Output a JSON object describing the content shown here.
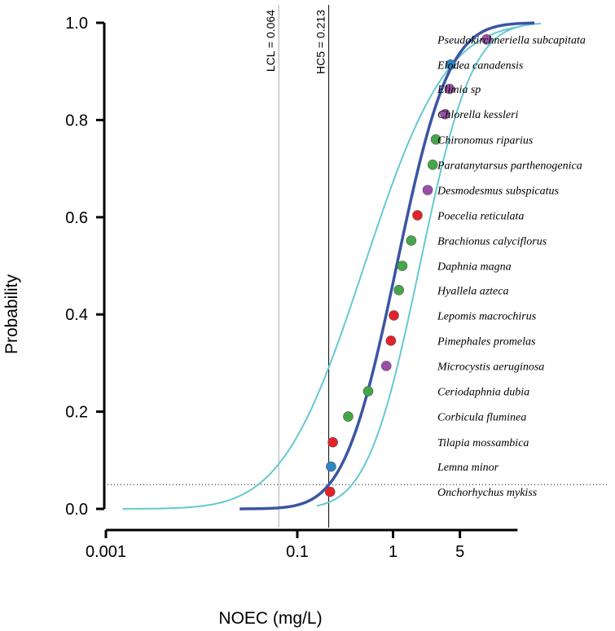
{
  "chart_data": {
    "type": "scatter",
    "xlabel": "NOEC (mg/L)",
    "ylabel": "Probability",
    "x_scale": "log",
    "xlim": [
      0.001,
      20
    ],
    "ylim": [
      0,
      1
    ],
    "x_ticks": [
      {
        "value": 0.001,
        "label": "0.001"
      },
      {
        "value": 0.1,
        "label": "0.1"
      },
      {
        "value": 1,
        "label": "1"
      },
      {
        "value": 5,
        "label": "5"
      }
    ],
    "y_ticks": [
      {
        "value": 0.0,
        "label": "0.0"
      },
      {
        "value": 0.2,
        "label": "0.2"
      },
      {
        "value": 0.4,
        "label": "0.4"
      },
      {
        "value": 0.6,
        "label": "0.6"
      },
      {
        "value": 0.8,
        "label": "0.8"
      },
      {
        "value": 1.0,
        "label": "1.0"
      }
    ],
    "grid": false,
    "reference_lines": [
      {
        "label": "LCL = 0.064",
        "x": 0.064,
        "color": "#aaaaaa"
      },
      {
        "label": "HC5 = 0.213",
        "x": 0.213,
        "color": "#000000"
      }
    ],
    "hline": {
      "y": 0.05,
      "style": "dotted"
    },
    "fit_curve": {
      "color": "#3a55a4",
      "median": 1.09,
      "sigma": 0.99,
      "x_range": [
        0.025,
        30
      ]
    },
    "confidence_band": {
      "color": "#66c8d2",
      "lower": {
        "median": 1.9,
        "sigma": 0.99,
        "x_range": [
          0.16,
          35
        ]
      },
      "upper": {
        "median": 0.5,
        "sigma": 1.55,
        "x_range": [
          0.0015,
          20
        ]
      }
    },
    "group_colors": {
      "fish": "#e3222a",
      "plant": "#2b86c5",
      "invertebrate": "#45a648",
      "algae": "#9b4fa7"
    },
    "points": [
      {
        "species": "Onchorhychus mykiss",
        "x": 0.22,
        "y": 0.035,
        "group": "fish"
      },
      {
        "species": "Lemna minor",
        "x": 0.225,
        "y": 0.087,
        "group": "plant"
      },
      {
        "species": "Tilapia mossambica",
        "x": 0.235,
        "y": 0.137,
        "group": "fish"
      },
      {
        "species": "Corbicula fluminea",
        "x": 0.34,
        "y": 0.19,
        "group": "invertebrate"
      },
      {
        "species": "Ceriodaphnia dubia",
        "x": 0.55,
        "y": 0.242,
        "group": "invertebrate"
      },
      {
        "species": "Microcystis aeruginosa",
        "x": 0.85,
        "y": 0.294,
        "group": "algae"
      },
      {
        "species": "Pimephales promelas",
        "x": 0.95,
        "y": 0.346,
        "group": "fish"
      },
      {
        "species": "Lepomis macrochirus",
        "x": 1.02,
        "y": 0.398,
        "group": "fish"
      },
      {
        "species": "Hyallela azteca",
        "x": 1.15,
        "y": 0.45,
        "group": "invertebrate"
      },
      {
        "species": "Daphnia magna",
        "x": 1.25,
        "y": 0.5,
        "group": "invertebrate"
      },
      {
        "species": "Brachionus calyciflorus",
        "x": 1.55,
        "y": 0.552,
        "group": "invertebrate"
      },
      {
        "species": "Poecelia reticulata",
        "x": 1.8,
        "y": 0.604,
        "group": "fish"
      },
      {
        "species": "Desmodesmus subspicatus",
        "x": 2.3,
        "y": 0.656,
        "group": "algae"
      },
      {
        "species": "Paratanytarsus parthenogenica",
        "x": 2.6,
        "y": 0.708,
        "group": "invertebrate"
      },
      {
        "species": "Chironomus riparius",
        "x": 2.8,
        "y": 0.76,
        "group": "invertebrate"
      },
      {
        "species": "Chlorella kessleri",
        "x": 3.5,
        "y": 0.812,
        "group": "algae"
      },
      {
        "species": "Elimia sp",
        "x": 3.9,
        "y": 0.864,
        "group": "algae"
      },
      {
        "species": "Elodea canadensis",
        "x": 4.0,
        "y": 0.914,
        "group": "plant"
      },
      {
        "species": "Pseudokirchneriella subcapitata",
        "x": 9.5,
        "y": 0.966,
        "group": "algae"
      }
    ]
  }
}
